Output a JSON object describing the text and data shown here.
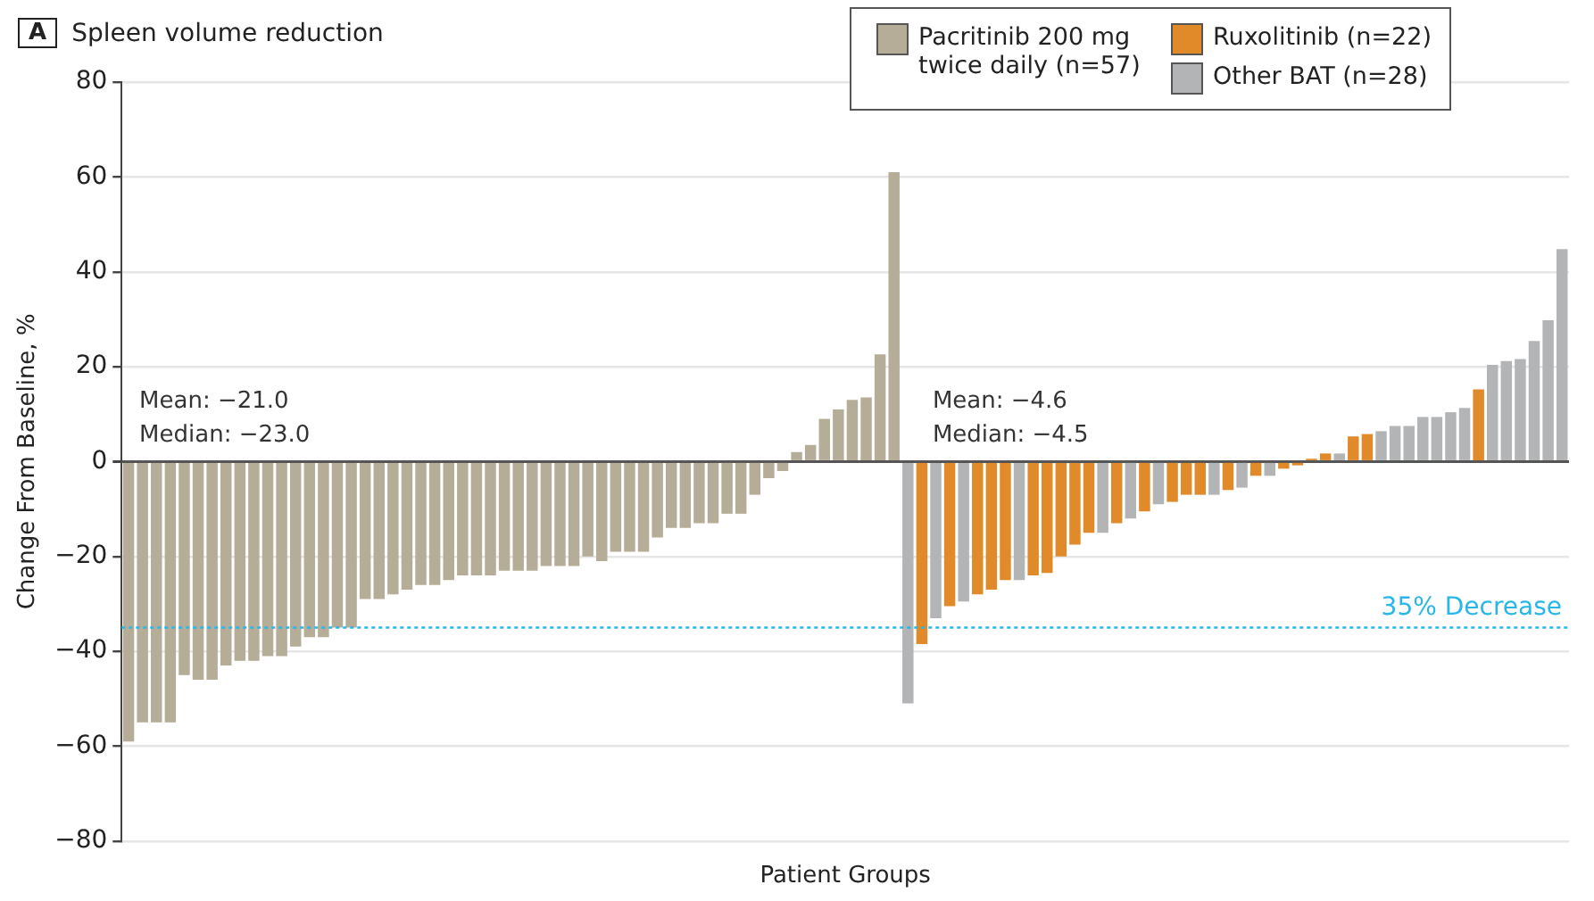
{
  "chart_data": {
    "type": "bar",
    "title": "Spleen volume reduction",
    "xlabel": "Patient Groups",
    "ylabel": "Change From Baseline, %",
    "annotations": [
      "A",
      "Mean: −21.0",
      "Median: −23.0",
      "Mean: −4.6",
      "Median: −4.5"
    ],
    "categories": [
      null,
      null,
      null,
      null,
      null,
      null,
      null,
      null,
      null,
      null,
      null,
      null,
      null,
      null,
      null,
      null,
      null,
      null,
      null,
      null,
      null,
      null,
      null,
      null,
      null,
      null,
      null,
      null,
      null,
      null,
      null,
      null,
      null,
      null,
      null,
      null,
      null,
      null,
      null,
      null,
      null,
      null,
      null,
      null,
      null,
      null,
      null,
      null,
      null,
      null,
      null,
      null,
      null,
      null,
      null,
      null,
      null,
      null,
      null,
      null,
      null,
      null,
      null,
      null,
      null,
      null,
      null,
      null,
      null,
      null,
      null,
      null,
      null,
      null,
      null,
      null,
      null,
      null,
      null,
      null,
      null,
      null,
      null,
      null,
      null,
      null,
      null,
      null,
      null,
      null,
      null,
      null,
      null,
      null,
      null,
      null,
      null,
      null,
      null,
      null,
      null,
      null,
      null,
      null
    ],
    "series": [
      {
        "name": "Pacritinib 200 mg twice daily (n=57)",
        "color": "#b5ad98",
        "values": [
          -59,
          -55,
          -55,
          -55,
          -45,
          -46,
          -46,
          -43,
          -42,
          -42,
          -41,
          -41,
          -39,
          -37,
          -37,
          -35,
          -35,
          -29,
          -29,
          -28,
          -27,
          -26,
          -26,
          -25,
          -24,
          -24,
          -24,
          -23,
          -23,
          -23,
          -22,
          -22,
          -22,
          -20,
          -21,
          -19,
          -19,
          -19,
          -16,
          -14,
          -14,
          -13,
          -13,
          -11,
          -11,
          -7,
          -3.5,
          -2,
          2,
          3.5,
          9,
          11,
          13,
          13.5,
          22.6,
          61,
          null,
          null,
          null,
          null,
          null,
          null,
          null,
          null,
          null,
          null,
          null,
          null,
          null,
          null,
          null,
          null,
          null,
          null,
          null,
          null,
          null,
          null,
          null,
          null,
          null,
          null,
          null,
          null,
          null,
          null,
          null,
          null,
          null,
          null,
          null,
          null,
          null,
          null,
          null,
          null,
          null,
          null,
          null,
          null,
          null,
          null,
          null,
          null
        ]
      },
      {
        "name": "Ruxolitinib (n=22)",
        "color": "#e08a2a",
        "values": [
          null,
          null,
          null,
          null,
          null,
          null,
          null,
          null,
          null,
          null,
          null,
          null,
          null,
          null,
          null,
          null,
          null,
          null,
          null,
          null,
          null,
          null,
          null,
          null,
          null,
          null,
          null,
          null,
          null,
          null,
          null,
          null,
          null,
          null,
          null,
          null,
          null,
          null,
          null,
          null,
          null,
          null,
          null,
          null,
          null,
          null,
          null,
          null,
          null,
          null,
          null,
          null,
          null,
          null,
          null,
          null,
          null,
          -38.5,
          null,
          -30.5,
          null,
          -28,
          -27,
          -25,
          null,
          -24,
          -23.5,
          -20,
          -17.5,
          -15,
          null,
          -13,
          null,
          -10.5,
          null,
          -8.5,
          -7,
          -7,
          null,
          -6,
          null,
          -3,
          null,
          -1.5,
          -0.8,
          0.6,
          1.7,
          null,
          5.3,
          5.8,
          null,
          null,
          null,
          null,
          null,
          null,
          null,
          15.2,
          null,
          null,
          null,
          null,
          null,
          null
        ]
      },
      {
        "name": "Other BAT (n=28)",
        "color": "#b3b4b6",
        "values": [
          null,
          null,
          null,
          null,
          null,
          null,
          null,
          null,
          null,
          null,
          null,
          null,
          null,
          null,
          null,
          null,
          null,
          null,
          null,
          null,
          null,
          null,
          null,
          null,
          null,
          null,
          null,
          null,
          null,
          null,
          null,
          null,
          null,
          null,
          null,
          null,
          null,
          null,
          null,
          null,
          null,
          null,
          null,
          null,
          null,
          null,
          null,
          null,
          null,
          null,
          null,
          null,
          null,
          null,
          null,
          null,
          -51,
          null,
          -33,
          null,
          -29.5,
          null,
          null,
          null,
          -25,
          null,
          null,
          null,
          null,
          null,
          -15,
          null,
          -12,
          null,
          -9,
          null,
          null,
          null,
          -7,
          null,
          -5.5,
          null,
          -3,
          null,
          null,
          null,
          null,
          1.7,
          null,
          null,
          6.4,
          7.5,
          7.5,
          9.4,
          9.4,
          10.4,
          11.3,
          null,
          20.4,
          21.2,
          21.6,
          25.4,
          29.8,
          44.8
        ]
      }
    ],
    "ylim": [
      -80,
      80
    ],
    "yticks": [
      -80,
      -60,
      -40,
      -20,
      0,
      20,
      40,
      60,
      80
    ],
    "grid": "y",
    "legend": "top right",
    "ref_lines": [
      {
        "axis": "y",
        "value": -35,
        "label": "35% Decrease",
        "color": "#29b6e8",
        "line_style": "dotted"
      }
    ]
  }
}
